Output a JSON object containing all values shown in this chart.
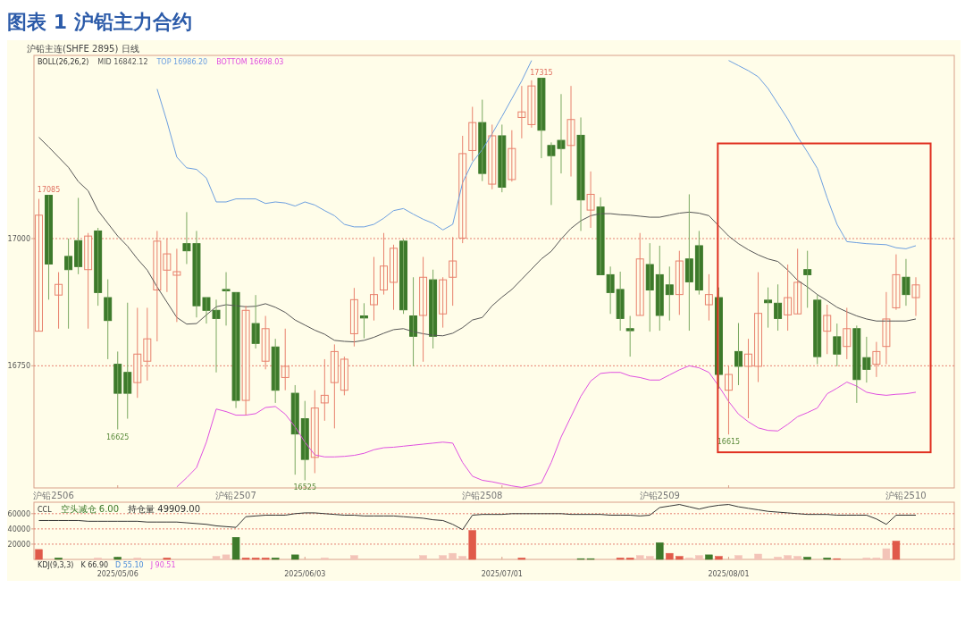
{
  "chart_data": [
    {
      "type": "candlestick",
      "title": "图表 1 沪铅主力合约",
      "subtitle": "沪铅主连(SHFE 2895) 日线",
      "categories": [
        null,
        null,
        null,
        null,
        null,
        null,
        null,
        null,
        "2025/05/06",
        null,
        null,
        null,
        null,
        null,
        null,
        null,
        null,
        null,
        null,
        null,
        null,
        null,
        null,
        null,
        null,
        null,
        null,
        "2025/06/03",
        null,
        null,
        null,
        null,
        null,
        null,
        null,
        null,
        null,
        null,
        null,
        null,
        null,
        null,
        null,
        null,
        null,
        null,
        null,
        "2025/07/01",
        null,
        null,
        null,
        null,
        null,
        null,
        null,
        null,
        null,
        null,
        null,
        null,
        null,
        null,
        null,
        null,
        null,
        null,
        null,
        null,
        null,
        null,
        "2025/08/01",
        null,
        null,
        null,
        null,
        null,
        null,
        null,
        null,
        null,
        null,
        null,
        null,
        null,
        null,
        null,
        null,
        null,
        null,
        null
      ],
      "ohlc": [
        [
          16818,
          17078,
          16818,
          17046
        ],
        [
          17085,
          17085,
          16880,
          16950
        ],
        [
          16889,
          16934,
          16823,
          16910
        ],
        [
          16965,
          17000,
          16823,
          16939
        ],
        [
          16996,
          17080,
          16930,
          16945
        ],
        [
          16939,
          17011,
          16823,
          17005
        ],
        [
          17015,
          17021,
          16868,
          16894
        ],
        [
          16884,
          16920,
          16763,
          16839
        ],
        [
          16753,
          16778,
          16625,
          16696
        ],
        [
          16737,
          16874,
          16646,
          16696
        ],
        [
          16717,
          16864,
          16687,
          16773
        ],
        [
          16759,
          16864,
          16721,
          16803
        ],
        [
          16899,
          17015,
          16798,
          16995
        ],
        [
          16938,
          17000,
          16895,
          16970
        ],
        [
          16928,
          16980,
          16836,
          16935
        ],
        [
          16990,
          17052,
          16950,
          16976
        ],
        [
          16990,
          17015,
          16845,
          16868
        ],
        [
          16884,
          16884,
          16833,
          16859
        ],
        [
          16859,
          16880,
          16737,
          16843
        ],
        [
          16900,
          16934,
          16829,
          16898
        ],
        [
          16894,
          16894,
          16667,
          16682
        ],
        [
          16682,
          16868,
          16653,
          16859
        ],
        [
          16833,
          16889,
          16784,
          16794
        ],
        [
          16759,
          16848,
          16743,
          16823
        ],
        [
          16787,
          16803,
          16677,
          16702
        ],
        [
          16727,
          16823,
          16702,
          16749
        ],
        [
          16696,
          16712,
          16536,
          16616
        ],
        [
          16646,
          16681,
          16525,
          16566
        ],
        [
          16570,
          16702,
          16539,
          16667
        ],
        [
          16677,
          16763,
          16642,
          16692
        ],
        [
          16717,
          16792,
          16627,
          16778
        ],
        [
          16702,
          16768,
          16692,
          16763
        ],
        [
          16813,
          16903,
          16788,
          16880
        ],
        [
          16848,
          16873,
          16804,
          16844
        ],
        [
          16870,
          16964,
          16839,
          16890
        ],
        [
          16899,
          17011,
          16890,
          16946
        ],
        [
          16914,
          16988,
          16860,
          16981
        ],
        [
          16995,
          16999,
          16852,
          16860
        ],
        [
          16848,
          16924,
          16749,
          16808
        ],
        [
          16849,
          16964,
          16758,
          16924
        ],
        [
          16919,
          16939,
          16784,
          16808
        ],
        [
          16852,
          16924,
          16825,
          16919
        ],
        [
          16924,
          17003,
          16868,
          16956
        ],
        [
          17001,
          17202,
          16991,
          17167
        ],
        [
          17173,
          17259,
          17153,
          17228
        ],
        [
          17228,
          17273,
          17113,
          17128
        ],
        [
          17107,
          17224,
          17097,
          17202
        ],
        [
          17202,
          17224,
          17091,
          17101
        ],
        [
          17116,
          17213,
          17112,
          17177
        ],
        [
          17238,
          17300,
          17197,
          17249
        ],
        [
          17224,
          17311,
          17218,
          17300
        ],
        [
          17315,
          17315,
          17158,
          17213
        ],
        [
          17183,
          17189,
          17066,
          17163
        ],
        [
          17193,
          17284,
          17128,
          17177
        ],
        [
          17183,
          17300,
          17122,
          17234
        ],
        [
          17203,
          17238,
          17015,
          17076
        ],
        [
          17056,
          17132,
          17021,
          17087
        ],
        [
          17062,
          17081,
          16929,
          16929
        ],
        [
          16929,
          16945,
          16852,
          16894
        ],
        [
          16900,
          16935,
          16819,
          16843
        ],
        [
          16823,
          16848,
          16768,
          16819
        ],
        [
          16849,
          17011,
          16849,
          16960
        ],
        [
          16949,
          16991,
          16817,
          16899
        ],
        [
          16929,
          16986,
          16819,
          16849
        ],
        [
          16909,
          16945,
          16839,
          16890
        ],
        [
          16890,
          16976,
          16850,
          16956
        ],
        [
          16960,
          17087,
          16819,
          16915
        ],
        [
          16986,
          17015,
          16890,
          16899
        ],
        [
          16870,
          16930,
          16839,
          16890
        ],
        [
          16884,
          16904,
          16705,
          16733
        ],
        [
          16702,
          16749,
          16615,
          16733
        ],
        [
          16778,
          16834,
          16712,
          16749
        ],
        [
          16749,
          16803,
          16647,
          16773
        ],
        [
          16749,
          16934,
          16718,
          16853
        ],
        [
          16879,
          16904,
          16825,
          16874
        ],
        [
          16873,
          16910,
          16819,
          16843
        ],
        [
          16850,
          16949,
          16819,
          16884
        ],
        [
          16852,
          16980,
          16852,
          16914
        ],
        [
          16939,
          16976,
          16864,
          16929
        ],
        [
          16879,
          16889,
          16753,
          16768
        ],
        [
          16818,
          16870,
          16773,
          16849
        ],
        [
          16807,
          16833,
          16749,
          16773
        ],
        [
          16788,
          16864,
          16763,
          16823
        ],
        [
          16823,
          16829,
          16677,
          16723
        ],
        [
          16766,
          16807,
          16717,
          16743
        ],
        [
          16753,
          16797,
          16728,
          16778
        ],
        [
          16788,
          16895,
          16753,
          16842
        ],
        [
          16864,
          16969,
          16860,
          16929
        ],
        [
          16924,
          16960,
          16868,
          16890
        ],
        [
          16884,
          16924,
          16848,
          16909
        ]
      ],
      "series": [
        {
          "name": "MID 16842.12",
          "type": "line",
          "color": "#555555",
          "values": [
            17199,
            17180,
            17160,
            17140,
            17112,
            17094,
            17055,
            17030,
            17005,
            16985,
            16960,
            16938,
            16905,
            16875,
            16845,
            16832,
            16833,
            16850,
            16866,
            16870,
            16868,
            16866,
            16867,
            16872,
            16865,
            16855,
            16840,
            16830,
            16820,
            16812,
            16800,
            16798,
            16797,
            16800,
            16806,
            16814,
            16821,
            16823,
            16817,
            16813,
            16810,
            16809,
            16814,
            16825,
            16840,
            16845,
            16868,
            16885,
            16900,
            16920,
            16940,
            16960,
            16975,
            16999,
            17020,
            17035,
            17045,
            17049,
            17049,
            17047,
            17046,
            17044,
            17042,
            17042,
            17046,
            17050,
            17052,
            17050,
            17045,
            17025,
            17005,
            16990,
            16978,
            16968,
            16960,
            16955,
            16938,
            16918,
            16905,
            16890,
            16878,
            16865,
            16856,
            16848,
            16842,
            16838,
            16838,
            16838,
            16838,
            16842
          ]
        },
        {
          "name": "TOP 16986.20",
          "type": "line",
          "color": "#6c9fe0",
          "values": [
            null,
            null,
            null,
            null,
            null,
            null,
            null,
            null,
            null,
            null,
            null,
            null,
            17294,
            17230,
            17160,
            17139,
            17136,
            17119,
            17072,
            17072,
            17078,
            17078,
            17078,
            17069,
            17072,
            17070,
            17064,
            17072,
            17066,
            17055,
            17045,
            17028,
            17023,
            17023,
            17028,
            17040,
            17055,
            17059,
            17048,
            17038,
            17030,
            17017,
            17028,
            17110,
            17150,
            17175,
            17206,
            17240,
            17275,
            17310,
            17350,
            null,
            null,
            null,
            null,
            null,
            null,
            null,
            null,
            null,
            null,
            null,
            null,
            null,
            null,
            null,
            null,
            null,
            null,
            null,
            17350,
            17340,
            17330,
            17318,
            17295,
            17265,
            17235,
            17200,
            17170,
            17138,
            17080,
            17028,
            16994,
            16992,
            16990,
            16989,
            16988,
            16982,
            16980,
            16986
          ]
        },
        {
          "name": "BOTTOM 16698.03",
          "type": "line",
          "color": "#e050e0",
          "values": [
            null,
            null,
            null,
            null,
            null,
            null,
            null,
            null,
            null,
            null,
            null,
            null,
            null,
            null,
            16512,
            16530,
            16550,
            16600,
            16665,
            16660,
            16653,
            16653,
            16656,
            16668,
            16670,
            16655,
            16630,
            16600,
            16575,
            16571,
            16571,
            16572,
            16574,
            16578,
            16585,
            16589,
            16590,
            16592,
            16594,
            16596,
            16598,
            16600,
            16598,
            16560,
            16533,
            16525,
            16522,
            16518,
            16514,
            16511,
            16515,
            16520,
            16560,
            16610,
            16650,
            16690,
            16720,
            16735,
            16737,
            16737,
            16730,
            16727,
            16722,
            16722,
            16732,
            16742,
            16750,
            16746,
            16737,
            16710,
            16680,
            16655,
            16640,
            16628,
            16623,
            16622,
            16635,
            16650,
            16658,
            16667,
            16695,
            16706,
            16718,
            16710,
            16698,
            16694,
            16692,
            16694,
            16695,
            16698
          ]
        }
      ],
      "legend_title": "BOLL(26,26,2)",
      "legend": "top left",
      "ylim": [
        16510,
        17360
      ],
      "yticks": [
        16750,
        17000
      ],
      "grid": "y",
      "tick_labels": "y",
      "annotations": [
        {
          "text": "17085",
          "y": 17085
        },
        {
          "text": "16625",
          "y": 16625
        },
        {
          "text": "17315",
          "y": 17315
        },
        {
          "text": "16525",
          "y": 16525
        },
        {
          "text": "16615",
          "y": 16615
        },
        "沪铅2506",
        "沪铅2507",
        "沪铅2508",
        "沪铅2509",
        "沪铅2510"
      ]
    },
    {
      "type": "bar",
      "categories": [
        null,
        null,
        null,
        null,
        null,
        null,
        null,
        null,
        "2025/05/06",
        null,
        null,
        null,
        null,
        null,
        null,
        null,
        null,
        null,
        null,
        null,
        null,
        null,
        null,
        null,
        null,
        null,
        null,
        "2025/06/03",
        null,
        null,
        null,
        null,
        null,
        null,
        null,
        null,
        null,
        null,
        null,
        null,
        null,
        null,
        null,
        null,
        null,
        null,
        null,
        "2025/07/01",
        null,
        null,
        null,
        null,
        null,
        null,
        null,
        null,
        null,
        null,
        null,
        null,
        null,
        null,
        null,
        null,
        null,
        null,
        null,
        null,
        null,
        null,
        "2025/08/01",
        null,
        null,
        null,
        null,
        null,
        null,
        null,
        null,
        null,
        null,
        null,
        null,
        null,
        null,
        null,
        null,
        null,
        null,
        null
      ],
      "series": [
        {
          "name": "空头减仓 6.00",
          "type": "bar",
          "color": "#3d7a2b",
          "values": [
            13000,
            null,
            2000,
            null,
            null,
            null,
            2000,
            null,
            3000,
            null,
            2000,
            null,
            null,
            2000,
            null,
            null,
            null,
            null,
            4000,
            6000,
            29000,
            2000,
            2000,
            2000,
            2000,
            null,
            6000,
            null,
            null,
            2000,
            null,
            null,
            5000,
            null,
            null,
            null,
            null,
            null,
            null,
            5000,
            null,
            5000,
            8000,
            4000,
            38000,
            null,
            null,
            null,
            null,
            2000,
            null,
            null,
            null,
            null,
            null,
            1000,
            1000,
            null,
            null,
            2000,
            2000,
            5000,
            4000,
            22000,
            8000,
            4000,
            2000,
            5000,
            6000,
            4000,
            null,
            5000,
            null,
            7000,
            null,
            3000,
            5000,
            4000,
            3000,
            null,
            2000,
            1000,
            null,
            null,
            2000,
            2000,
            14000,
            24000,
            null,
            null
          ],
          "colors": [
            "#e05a4a",
            null,
            "#3d7a2b",
            null,
            null,
            null,
            "#f3c4b8",
            null,
            "#3d7a2b",
            null,
            "#f3c4b8",
            null,
            null,
            "#e05a4a",
            null,
            null,
            null,
            null,
            "#f3c4b8",
            "#f3c4b8",
            "#3d7a2b",
            "#e05a4a",
            "#e05a4a",
            "#e05a4a",
            "#3d7a2b",
            null,
            "#3d7a2b",
            null,
            null,
            "#f3c4b8",
            null,
            null,
            "#f3c4b8",
            null,
            null,
            null,
            null,
            null,
            null,
            "#f3c4b8",
            null,
            "#f3c4b8",
            "#f3c4b8",
            "#f3c4b8",
            "#e05a4a",
            null,
            null,
            null,
            null,
            "#e05a4a",
            null,
            null,
            null,
            null,
            null,
            "#3d7a2b",
            "#3d7a2b",
            null,
            null,
            "#e05a4a",
            "#e05a4a",
            "#f3c4b8",
            "#f3c4b8",
            "#3d7a2b",
            "#e05a4a",
            "#e05a4a",
            "#f3c4b8",
            "#f3c4b8",
            "#3d7a2b",
            "#e05a4a",
            null,
            "#f3c4b8",
            null,
            "#f3c4b8",
            null,
            "#f3c4b8",
            "#f3c4b8",
            "#f3c4b8",
            "#3d7a2b",
            null,
            "#3d7a2b",
            "#e05a4a",
            null,
            null,
            "#f3c4b8",
            "#f3c4b8",
            "#f3c4b8",
            "#e05a4a",
            null,
            null
          ]
        },
        {
          "name": "持仓量 49909.00",
          "type": "line",
          "color": "#333333",
          "values": [
            51000,
            51000,
            51000,
            51000,
            51000,
            50000,
            50000,
            50000,
            50000,
            50000,
            50000,
            49000,
            49000,
            49000,
            49000,
            48000,
            47000,
            46000,
            44000,
            43000,
            42000,
            56000,
            57000,
            58000,
            58000,
            58000,
            60000,
            61000,
            61000,
            60000,
            59000,
            58000,
            58000,
            57000,
            57000,
            57000,
            57000,
            56000,
            55000,
            54000,
            52000,
            51000,
            46000,
            39000,
            58000,
            59000,
            59000,
            59000,
            60000,
            60000,
            60000,
            60000,
            60000,
            60000,
            59000,
            59000,
            59000,
            59000,
            58000,
            58000,
            58000,
            57000,
            58000,
            68000,
            70000,
            72000,
            69000,
            66000,
            69000,
            71000,
            72000,
            69000,
            67000,
            65000,
            63000,
            62000,
            61000,
            60000,
            59000,
            59000,
            59000,
            58000,
            58000,
            58000,
            58000,
            53000,
            46000,
            58000,
            58000,
            58000
          ]
        }
      ],
      "legend_title": "CCL",
      "legend": "top left",
      "ylim": [
        0,
        75000
      ],
      "yticks": [
        20000,
        40000,
        60000
      ],
      "grid": "y",
      "annotations": [
        "KDJ(9,3,3)",
        "K 66.90",
        "D 55.10",
        "J 90.51"
      ]
    }
  ]
}
